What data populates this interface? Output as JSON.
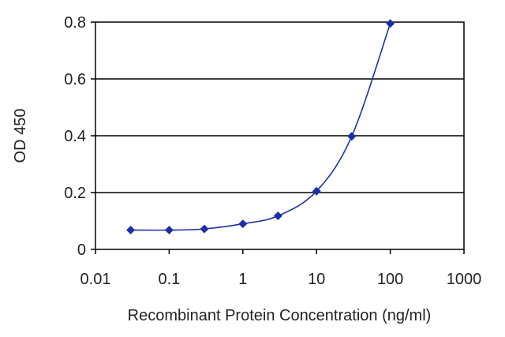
{
  "chart_data": {
    "type": "line",
    "title": "",
    "xlabel": "Recombinant Protein Concentration (ng/ml)",
    "ylabel": "OD 450",
    "xscale": "log",
    "xlim": [
      0.01,
      1000
    ],
    "ylim": [
      0,
      0.8
    ],
    "xticks": [
      0.01,
      0.1,
      1,
      10,
      100,
      1000
    ],
    "xtick_labels": [
      "0.01",
      "0.1",
      "1",
      "10",
      "100",
      "1000"
    ],
    "yticks": [
      0,
      0.2,
      0.4,
      0.6,
      0.8
    ],
    "ytick_labels": [
      "0",
      "0.2",
      "0.4",
      "0.6",
      "0.8"
    ],
    "grid": "horizontal",
    "legend": "none",
    "series": [
      {
        "color": "#1c2fa8",
        "x": [
          0.03,
          0.1,
          0.3,
          1,
          3,
          10,
          30,
          100
        ],
        "y": [
          0.068,
          0.068,
          0.072,
          0.09,
          0.118,
          0.205,
          0.398,
          0.795
        ]
      }
    ]
  }
}
